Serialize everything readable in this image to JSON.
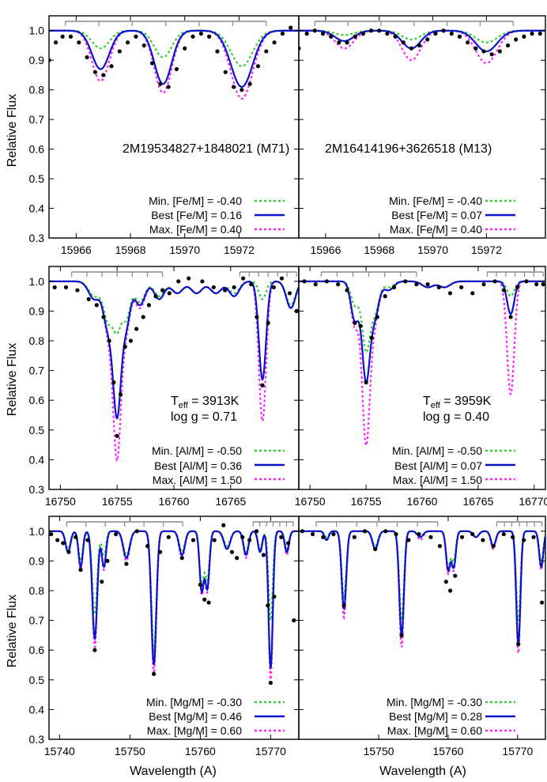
{
  "figure": {
    "ylabel": "Relative Flux",
    "xlabel": "Wavelength (A)"
  },
  "rows": [
    {
      "key": "fe",
      "xlim": [
        15965,
        15974.2
      ],
      "ylim": [
        0.3,
        1.05
      ],
      "xticks": [
        15966,
        15968,
        15970,
        15972
      ],
      "yticks": [
        "0.3",
        "0.4",
        "0.5",
        "0.6",
        "0.7",
        "0.8",
        "0.9",
        "1.0"
      ],
      "legend": [
        "Min. [Fe/M] = -0.40",
        "Best [Fe/M] = 0.16",
        "Max. [Fe/M] = 0.40"
      ],
      "legend_right": [
        "Min. [Fe/M] = -0.40",
        "Best [Fe/M] = 0.07",
        "Max. [Fe/M] = 0.40"
      ]
    },
    {
      "key": "al",
      "xlim": [
        16749,
        16771
      ],
      "ylim": [
        0.3,
        1.05
      ],
      "xticks_left": [
        16750,
        16755,
        16760,
        16765
      ],
      "xticks_right": [
        16750,
        16755,
        16760,
        16765,
        16770
      ],
      "yticks": [
        "0.3",
        "0.4",
        "0.5",
        "0.6",
        "0.7",
        "0.8",
        "0.9",
        "1.0"
      ],
      "legend_left": [
        "Min. [Al/M] = -0.50",
        "Best [Al/M] = 0.36",
        "Max. [Al/M] = 1.50"
      ],
      "legend_right": [
        "Min. [Al/M] = -0.50",
        "Best [Al/M] = 0.07",
        "Max. [Al/M] = 1.50"
      ]
    },
    {
      "key": "mg",
      "xlim": [
        15738.5,
        15774
      ],
      "ylim": [
        0.3,
        1.05
      ],
      "xticks_left": [
        15740,
        15750,
        15760,
        15770
      ],
      "xticks_right": [
        15750,
        15760,
        15770
      ],
      "yticks": [
        "0.3",
        "0.4",
        "0.5",
        "0.6",
        "0.7",
        "0.8",
        "0.9",
        "1.0"
      ],
      "legend_left": [
        "Min. [Mg/M] = -0.30",
        "Best [Mg/M] = 0.46",
        "Max. [Mg/M] = 0.60"
      ],
      "legend_right": [
        "Min. [Mg/M] = -0.30",
        "Best [Mg/M] = 0.28",
        "Max. [Mg/M] = 0.60"
      ]
    }
  ],
  "annotations": {
    "star_left": "2M19534827+1848021 (M71)",
    "star_right": "2M16414196+3626518 (M13)",
    "teff_left": "3913K",
    "logg_left": "log g = 0.71",
    "teff_right": "3959K",
    "logg_right": "log g = 0.40",
    "teff_prefix": "T",
    "teff_sub": "eff",
    "teff_eq": " = "
  },
  "colors": {
    "min": "#33cc33",
    "best": "#0a14c8",
    "max": "#ff22ff",
    "obs": "#000000",
    "window": "#888888"
  },
  "chart_data": [
    {
      "type": "line",
      "panel": "top-left",
      "x_range": [
        15965,
        15974.2
      ],
      "y_range": [
        0.3,
        1.05
      ],
      "windows": [
        [
          15965.6,
          15973.0
        ]
      ],
      "lines": [
        {
          "x": 15966.9,
          "w": 0.32,
          "min": 0.06,
          "best": 0.13,
          "max": 0.17
        },
        {
          "x": 15969.2,
          "w": 0.32,
          "min": 0.09,
          "best": 0.18,
          "max": 0.21
        },
        {
          "x": 15972.1,
          "w": 0.4,
          "min": 0.12,
          "best": 0.19,
          "max": 0.23
        }
      ],
      "obs_x": [
        15965.0,
        15965.25,
        15965.5,
        15965.8,
        15966.1,
        15966.4,
        15966.7,
        15967.0,
        15967.3,
        15967.6,
        15967.9,
        15968.2,
        15968.5,
        15968.8,
        15969.1,
        15969.4,
        15969.7,
        15970.0,
        15970.3,
        15970.6,
        15970.9,
        15971.2,
        15971.5,
        15971.8,
        15972.1,
        15972.4,
        15972.7,
        15973.0,
        15973.3,
        15973.6,
        15973.9
      ],
      "obs_y": [
        0.9,
        0.96,
        0.98,
        0.98,
        0.96,
        0.91,
        0.86,
        0.85,
        0.88,
        0.93,
        0.96,
        0.98,
        0.95,
        0.89,
        0.82,
        0.81,
        0.87,
        0.94,
        0.98,
        0.99,
        0.98,
        0.93,
        0.86,
        0.81,
        0.8,
        0.82,
        0.88,
        0.93,
        0.96,
        0.99,
        1.01
      ]
    },
    {
      "type": "line",
      "panel": "top-right",
      "x_range": [
        15965,
        15974.2
      ],
      "y_range": [
        0.3,
        1.05
      ],
      "windows": [
        [
          15965.6,
          15973.0
        ]
      ],
      "lines": [
        {
          "x": 15966.7,
          "w": 0.35,
          "min": 0.015,
          "best": 0.035,
          "max": 0.06
        },
        {
          "x": 15969.2,
          "w": 0.35,
          "min": 0.03,
          "best": 0.06,
          "max": 0.1
        },
        {
          "x": 15972.0,
          "w": 0.4,
          "min": 0.04,
          "best": 0.07,
          "max": 0.11
        }
      ],
      "obs_x": [
        15965.0,
        15965.3,
        15965.6,
        15965.9,
        15966.2,
        15966.5,
        15966.8,
        15967.1,
        15967.4,
        15967.7,
        15968.0,
        15968.3,
        15968.6,
        15968.9,
        15969.2,
        15969.5,
        15969.8,
        15970.1,
        15970.4,
        15970.7,
        15971.0,
        15971.3,
        15971.6,
        15971.9,
        15972.2,
        15972.5,
        15972.8,
        15973.1,
        15973.4,
        15973.7,
        15974.0
      ],
      "obs_y": [
        0.94,
        0.99,
        1.0,
        0.99,
        0.98,
        0.96,
        0.96,
        0.98,
        0.99,
        1.0,
        1.0,
        0.99,
        0.98,
        0.96,
        0.94,
        0.95,
        0.97,
        0.99,
        1.0,
        0.99,
        0.98,
        0.96,
        0.94,
        0.93,
        0.92,
        0.93,
        0.95,
        0.97,
        0.98,
        0.99,
        0.99
      ]
    },
    {
      "type": "line",
      "panel": "middle-left",
      "x_range": [
        16749,
        16771
      ],
      "y_range": [
        0.3,
        1.05
      ],
      "windows": [
        [
          16751,
          16759
        ],
        [
          16765.8,
          16770.8
        ]
      ],
      "lines": [
        {
          "x": 16753.0,
          "w": 0.5,
          "min": 0.05,
          "best": 0.06,
          "max": 0.06
        },
        {
          "x": 16754.2,
          "w": 0.4,
          "min": 0.13,
          "best": 0.15,
          "max": 0.16
        },
        {
          "x": 16755.0,
          "w": 0.35,
          "min": 0.15,
          "best": 0.43,
          "max": 0.57
        },
        {
          "x": 16755.8,
          "w": 0.35,
          "min": 0.12,
          "best": 0.14,
          "max": 0.15
        },
        {
          "x": 16757.0,
          "w": 0.45,
          "min": 0.07,
          "best": 0.08,
          "max": 0.09
        },
        {
          "x": 16758.7,
          "w": 0.45,
          "min": 0.05,
          "best": 0.06,
          "max": 0.06
        },
        {
          "x": 16760.3,
          "w": 0.5,
          "min": 0.04,
          "best": 0.04,
          "max": 0.04
        },
        {
          "x": 16762.0,
          "w": 0.5,
          "min": 0.04,
          "best": 0.04,
          "max": 0.04
        },
        {
          "x": 16763.7,
          "w": 0.5,
          "min": 0.04,
          "best": 0.04,
          "max": 0.04
        },
        {
          "x": 16765.3,
          "w": 0.45,
          "min": 0.04,
          "best": 0.05,
          "max": 0.05
        },
        {
          "x": 16767.8,
          "w": 0.32,
          "min": 0.06,
          "best": 0.33,
          "max": 0.47
        },
        {
          "x": 16770.3,
          "w": 0.4,
          "min": 0.08,
          "best": 0.09,
          "max": 0.09
        }
      ],
      "obs_x": [
        16749.5,
        16750.5,
        16751.5,
        16752.5,
        16753.2,
        16753.8,
        16754.3,
        16754.7,
        16755.0,
        16755.3,
        16755.7,
        16756.2,
        16756.7,
        16757.3,
        16757.8,
        16758.4,
        16759.0,
        16759.6,
        16760.4,
        16761.3,
        16762.5,
        16763.5,
        16764.5,
        16765.3,
        16766.1,
        16766.8,
        16767.3,
        16767.8,
        16768.3,
        16768.8,
        16769.5,
        16770.2,
        16770.8
      ],
      "obs_y": [
        0.98,
        0.98,
        0.97,
        0.94,
        0.92,
        0.88,
        0.8,
        0.66,
        0.48,
        0.62,
        0.78,
        0.8,
        0.84,
        0.88,
        0.92,
        0.95,
        0.97,
        0.96,
        1.0,
        1.01,
        1.0,
        0.98,
        0.97,
        0.98,
        1.01,
        0.99,
        0.88,
        0.65,
        0.86,
        0.98,
        1.01,
        0.96,
        0.9
      ]
    },
    {
      "type": "line",
      "panel": "middle-right",
      "x_range": [
        16749,
        16771
      ],
      "y_range": [
        0.3,
        1.05
      ],
      "windows": [
        [
          16751,
          16759.5
        ],
        [
          16765.8,
          16770.8
        ]
      ],
      "lines": [
        {
          "x": 16754.0,
          "w": 0.35,
          "min": 0.08,
          "best": 0.13,
          "max": 0.15
        },
        {
          "x": 16755.0,
          "w": 0.35,
          "min": 0.23,
          "best": 0.33,
          "max": 0.54
        },
        {
          "x": 16755.8,
          "w": 0.35,
          "min": 0.1,
          "best": 0.11,
          "max": 0.12
        },
        {
          "x": 16757.0,
          "w": 0.45,
          "min": 0.02,
          "best": 0.03,
          "max": 0.03
        },
        {
          "x": 16760.5,
          "w": 0.5,
          "min": 0.02,
          "best": 0.02,
          "max": 0.02
        },
        {
          "x": 16762.0,
          "w": 0.5,
          "min": 0.02,
          "best": 0.02,
          "max": 0.02
        },
        {
          "x": 16767.9,
          "w": 0.32,
          "min": 0.05,
          "best": 0.11,
          "max": 0.38
        }
      ],
      "obs_x": [
        16749.5,
        16750.5,
        16751.5,
        16752.5,
        16753.3,
        16754.0,
        16754.5,
        16755.0,
        16755.5,
        16756.0,
        16756.7,
        16757.5,
        16758.5,
        16759.5,
        16760.5,
        16761.5,
        16762.5,
        16763.5,
        16764.5,
        16765.5,
        16766.5,
        16767.3,
        16767.9,
        16768.5,
        16769.3,
        16770.2,
        16770.8
      ],
      "obs_y": [
        1.0,
        0.99,
        1.0,
        0.99,
        0.97,
        0.86,
        0.85,
        0.66,
        0.81,
        0.88,
        0.95,
        0.98,
        1.0,
        0.99,
        0.99,
        0.98,
        0.96,
        0.98,
        0.96,
        0.99,
        1.0,
        0.97,
        0.88,
        0.98,
        1.0,
        0.99,
        0.99
      ]
    },
    {
      "type": "line",
      "panel": "bottom-left",
      "x_range": [
        15738.5,
        15774
      ],
      "y_range": [
        0.3,
        1.05
      ],
      "windows": [
        [
          15741,
          15757.5
        ],
        [
          15767.5,
          15773.2
        ]
      ],
      "lines": [
        {
          "x": 15741.2,
          "w": 0.35,
          "min": 0.06,
          "best": 0.07,
          "max": 0.07
        },
        {
          "x": 15743.0,
          "w": 0.3,
          "min": 0.1,
          "best": 0.12,
          "max": 0.13
        },
        {
          "x": 15745.0,
          "w": 0.35,
          "min": 0.28,
          "best": 0.36,
          "max": 0.39
        },
        {
          "x": 15746.3,
          "w": 0.3,
          "min": 0.08,
          "best": 0.12,
          "max": 0.13
        },
        {
          "x": 15749.5,
          "w": 0.45,
          "min": 0.08,
          "best": 0.09,
          "max": 0.1
        },
        {
          "x": 15753.4,
          "w": 0.35,
          "min": 0.4,
          "best": 0.45,
          "max": 0.48
        },
        {
          "x": 15757.4,
          "w": 0.4,
          "min": 0.07,
          "best": 0.08,
          "max": 0.09
        },
        {
          "x": 15760.2,
          "w": 0.3,
          "min": 0.18,
          "best": 0.2,
          "max": 0.21
        },
        {
          "x": 15761.0,
          "w": 0.3,
          "min": 0.16,
          "best": 0.19,
          "max": 0.2
        },
        {
          "x": 15763.8,
          "w": 0.45,
          "min": 0.05,
          "best": 0.06,
          "max": 0.06
        },
        {
          "x": 15766.5,
          "w": 0.35,
          "min": 0.07,
          "best": 0.08,
          "max": 0.09
        },
        {
          "x": 15768.5,
          "w": 0.3,
          "min": 0.06,
          "best": 0.07,
          "max": 0.07
        },
        {
          "x": 15770.0,
          "w": 0.3,
          "min": 0.3,
          "best": 0.46,
          "max": 0.5
        },
        {
          "x": 15772.3,
          "w": 0.3,
          "min": 0.06,
          "best": 0.07,
          "max": 0.08
        }
      ],
      "obs_x": [
        15738.8,
        15739.7,
        15740.5,
        15741.3,
        15742.3,
        15743.0,
        15744.0,
        15745.0,
        15746.0,
        15746.8,
        15748.0,
        15749.5,
        15751.0,
        15752.5,
        15753.4,
        15754.3,
        15755.5,
        15757.4,
        15759.0,
        15760.0,
        15760.6,
        15761.2,
        15762.0,
        15763.3,
        15764.5,
        15765.2,
        15766.0,
        15767.0,
        15768.0,
        15769.0,
        15769.6,
        15770.0,
        15770.5,
        15771.5,
        15772.5,
        15773.3
      ],
      "obs_y": [
        0.99,
        0.97,
        0.96,
        0.93,
        0.98,
        0.87,
        0.97,
        0.6,
        0.83,
        0.9,
        0.99,
        0.89,
        1.0,
        0.95,
        0.52,
        0.93,
        0.98,
        0.91,
        0.97,
        0.82,
        0.77,
        0.76,
        0.97,
        1.02,
        0.93,
        0.91,
        0.98,
        0.97,
        1.0,
        0.92,
        0.75,
        0.49,
        0.78,
        0.98,
        0.96,
        0.7
      ]
    },
    {
      "type": "line",
      "panel": "bottom-right",
      "x_range": [
        15738.5,
        15774
      ],
      "y_range": [
        0.3,
        1.05
      ],
      "windows": [
        [
          15741,
          15758.5
        ],
        [
          15767,
          15773.5
        ]
      ],
      "lines": [
        {
          "x": 15742.5,
          "w": 0.3,
          "min": 0.02,
          "best": 0.03,
          "max": 0.03
        },
        {
          "x": 15745.0,
          "w": 0.33,
          "min": 0.22,
          "best": 0.26,
          "max": 0.29
        },
        {
          "x": 15749.5,
          "w": 0.4,
          "min": 0.05,
          "best": 0.06,
          "max": 0.06
        },
        {
          "x": 15753.3,
          "w": 0.33,
          "min": 0.3,
          "best": 0.35,
          "max": 0.39
        },
        {
          "x": 15756.0,
          "w": 0.4,
          "min": 0.02,
          "best": 0.02,
          "max": 0.03
        },
        {
          "x": 15760.0,
          "w": 0.3,
          "min": 0.12,
          "best": 0.13,
          "max": 0.14
        },
        {
          "x": 15760.8,
          "w": 0.3,
          "min": 0.1,
          "best": 0.12,
          "max": 0.13
        },
        {
          "x": 15764.0,
          "w": 0.4,
          "min": 0.02,
          "best": 0.02,
          "max": 0.02
        },
        {
          "x": 15766.5,
          "w": 0.35,
          "min": 0.05,
          "best": 0.05,
          "max": 0.06
        },
        {
          "x": 15770.1,
          "w": 0.3,
          "min": 0.3,
          "best": 0.38,
          "max": 0.41
        },
        {
          "x": 15773.4,
          "w": 0.3,
          "min": 0.1,
          "best": 0.12,
          "max": 0.13
        }
      ],
      "obs_x": [
        15739.0,
        15740.5,
        15742.0,
        15743.5,
        15745.0,
        15746.5,
        15748.0,
        15749.5,
        15751.0,
        15752.5,
        15753.3,
        15754.3,
        15755.8,
        15757.5,
        15758.8,
        15759.7,
        15760.3,
        15761.0,
        15762.0,
        15763.5,
        15765.0,
        15766.5,
        15768.0,
        15769.3,
        15770.1,
        15770.9,
        15772.3,
        15773.5
      ],
      "obs_y": [
        1.0,
        0.99,
        0.98,
        0.99,
        0.75,
        0.98,
        1.0,
        0.94,
        1.0,
        0.99,
        0.65,
        0.97,
        0.99,
        0.98,
        0.95,
        0.83,
        0.8,
        0.85,
        0.98,
        0.99,
        0.97,
        0.95,
        0.99,
        0.98,
        0.62,
        0.97,
        0.98,
        0.76
      ]
    }
  ]
}
